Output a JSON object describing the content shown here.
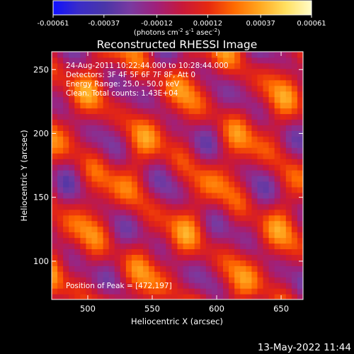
{
  "chart_data": {
    "type": "heatmap",
    "title": "Reconstructed RHESSI Image",
    "xlabel": "Heliocentric X (arcsec)",
    "ylabel": "Heliocentric Y (arcsec)",
    "xlim": [
      472,
      667
    ],
    "ylim": [
      70,
      264
    ],
    "x_ticks": [
      500,
      550,
      600,
      650
    ],
    "y_ticks": [
      100,
      150,
      200,
      250
    ],
    "colorbar": {
      "min": -0.00061,
      "max": 0.00061,
      "tick_values": [
        -0.00061,
        -0.00037,
        -0.00012,
        0.00012,
        0.00037,
        0.00061
      ],
      "tick_labels": [
        "-0.00061",
        "-0.00037",
        "-0.00012",
        "0.00012",
        "0.00037",
        "0.00061"
      ],
      "units_prefix": "(photons cm",
      "units_exp1": "-2",
      "units_mid": " s",
      "units_exp2": "-1",
      "units_mid2": " asec",
      "units_exp3": "-2",
      "units_suffix": ")"
    },
    "annotations": [
      "24-Aug-2011 10:22:44.000 to 10:28:44.000",
      "Detectors: 3F 4F 5F 6F 7F 8F, Att 0",
      "Energy Range: 25.0 - 50.0 keV",
      "Clean.  Total counts: 1.43E+04"
    ],
    "peak_label": "Position of Peak = [472,197]",
    "peak": [
      472,
      197
    ],
    "pattern": {
      "ridge_direction_deg": -36,
      "ridge_spacing_arcsec": 44,
      "wave_along_ridge_arcsec": 62
    }
  },
  "footer": {
    "date": "13-May-2022 11:44"
  },
  "colors": {
    "background": "#000000",
    "text": "#ffffff",
    "colormap": [
      "#1010ff",
      "#3a2cc8",
      "#4a36a8",
      "#7a3aa0",
      "#a0207a",
      "#c8183a",
      "#e62810",
      "#ff6a00",
      "#ffa820",
      "#ffe060",
      "#fffcc8"
    ]
  }
}
